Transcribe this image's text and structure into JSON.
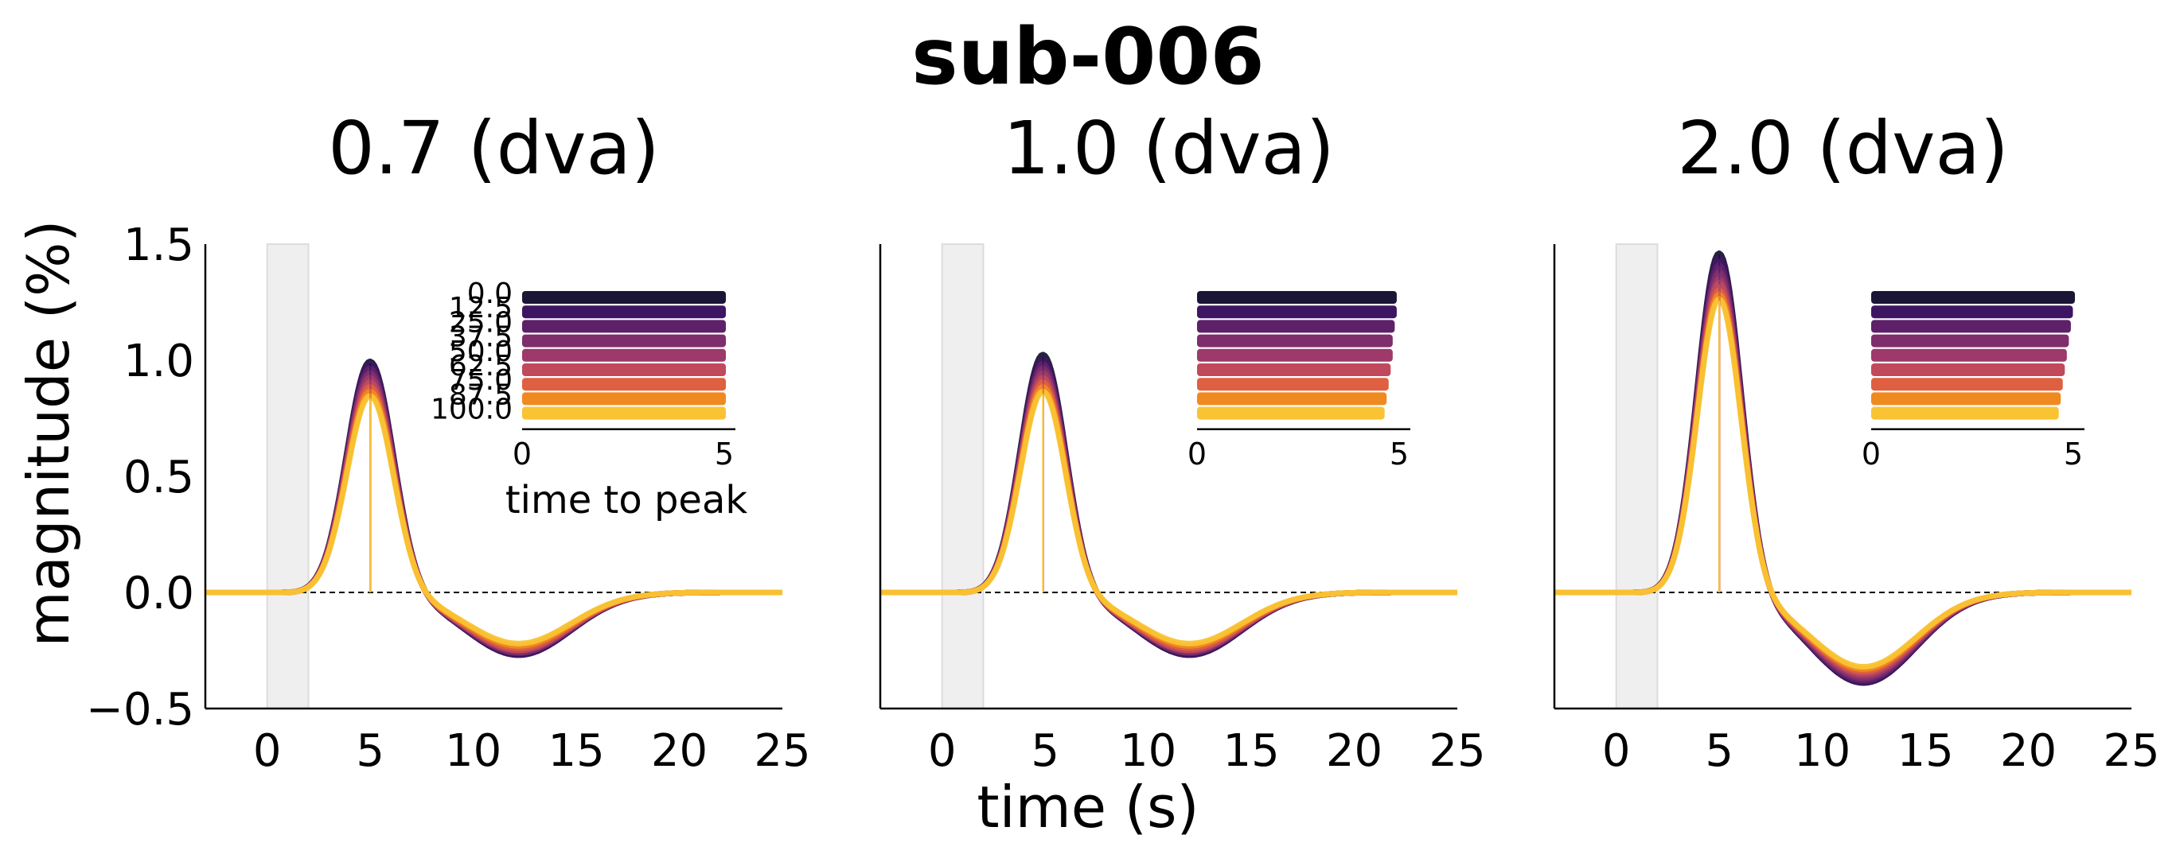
{
  "figure": {
    "suptitle": "sub-006",
    "xlabel": "time (s)",
    "ylabel": "magnitude (%)"
  },
  "chart_data": [
    {
      "type": "line",
      "title": "0.7 (dva)",
      "xlim": [
        -3,
        25
      ],
      "ylim": [
        -0.5,
        1.5
      ],
      "xticks": [
        "0",
        "5",
        "10",
        "15",
        "20",
        "25"
      ],
      "yticks": [
        "−0.5",
        "0.0",
        "0.5",
        "1.0",
        "1.5"
      ],
      "stimulus_window": [
        0,
        2
      ],
      "reference_line_y": 0,
      "legend_categories": [
        "0.0",
        "12.5",
        "25.0",
        "37.5",
        "50.0",
        "62.5",
        "75.0",
        "87.5",
        "100.0"
      ],
      "colors": [
        "#1b1536",
        "#3e1562",
        "#5e2169",
        "#7d2e6b",
        "#9d3a6a",
        "#c04a5b",
        "#df6040",
        "#ef8a20",
        "#f9c333"
      ],
      "series": [
        {
          "peak": 1.0,
          "ttp": 5.0,
          "undershoot": -0.27,
          "under_t": 12.2,
          "width": 1.6
        },
        {
          "peak": 0.99,
          "ttp": 5.0,
          "undershoot": -0.27,
          "under_t": 12.2,
          "width": 1.6
        },
        {
          "peak": 0.97,
          "ttp": 5.0,
          "undershoot": -0.26,
          "under_t": 12.2,
          "width": 1.6
        },
        {
          "peak": 0.95,
          "ttp": 5.0,
          "undershoot": -0.26,
          "under_t": 12.2,
          "width": 1.6
        },
        {
          "peak": 0.93,
          "ttp": 5.0,
          "undershoot": -0.25,
          "under_t": 12.2,
          "width": 1.6
        },
        {
          "peak": 0.91,
          "ttp": 5.0,
          "undershoot": -0.25,
          "under_t": 12.2,
          "width": 1.6
        },
        {
          "peak": 0.89,
          "ttp": 5.0,
          "undershoot": -0.24,
          "under_t": 12.2,
          "width": 1.6
        },
        {
          "peak": 0.87,
          "ttp": 5.0,
          "undershoot": -0.23,
          "under_t": 12.2,
          "width": 1.6
        },
        {
          "peak": 0.85,
          "ttp": 5.0,
          "undershoot": -0.22,
          "under_t": 12.2,
          "width": 1.6
        }
      ],
      "inset": {
        "type": "bar",
        "orientation": "horizontal",
        "xlabel": "time to peak",
        "xlim": [
          0,
          5
        ],
        "xticks": [
          "0",
          "5"
        ],
        "show_category_labels": true,
        "values": [
          5.0,
          5.0,
          5.0,
          5.0,
          5.0,
          5.0,
          5.0,
          5.0,
          5.0
        ]
      }
    },
    {
      "type": "line",
      "title": "1.0 (dva)",
      "xlim": [
        -3,
        25
      ],
      "ylim": [
        -0.5,
        1.5
      ],
      "xticks": [
        "0",
        "5",
        "10",
        "15",
        "20",
        "25"
      ],
      "stimulus_window": [
        0,
        2
      ],
      "reference_line_y": 0,
      "colors": [
        "#1b1536",
        "#3e1562",
        "#5e2169",
        "#7d2e6b",
        "#9d3a6a",
        "#c04a5b",
        "#df6040",
        "#ef8a20",
        "#f9c333"
      ],
      "series": [
        {
          "peak": 1.03,
          "ttp": 4.9,
          "undershoot": -0.27,
          "under_t": 12.0,
          "width": 1.55
        },
        {
          "peak": 1.01,
          "ttp": 4.9,
          "undershoot": -0.27,
          "under_t": 12.0,
          "width": 1.55
        },
        {
          "peak": 0.99,
          "ttp": 4.9,
          "undershoot": -0.26,
          "under_t": 12.0,
          "width": 1.55
        },
        {
          "peak": 0.97,
          "ttp": 4.9,
          "undershoot": -0.26,
          "under_t": 12.0,
          "width": 1.55
        },
        {
          "peak": 0.95,
          "ttp": 4.9,
          "undershoot": -0.25,
          "under_t": 12.0,
          "width": 1.55
        },
        {
          "peak": 0.93,
          "ttp": 4.9,
          "undershoot": -0.25,
          "under_t": 12.0,
          "width": 1.55
        },
        {
          "peak": 0.91,
          "ttp": 4.9,
          "undershoot": -0.24,
          "under_t": 12.0,
          "width": 1.55
        },
        {
          "peak": 0.89,
          "ttp": 4.9,
          "undershoot": -0.23,
          "under_t": 12.0,
          "width": 1.55
        },
        {
          "peak": 0.87,
          "ttp": 4.9,
          "undershoot": -0.22,
          "under_t": 12.0,
          "width": 1.55
        }
      ],
      "inset": {
        "type": "bar",
        "orientation": "horizontal",
        "xlim": [
          0,
          5
        ],
        "xticks": [
          "0",
          "5"
        ],
        "show_category_labels": false,
        "values": [
          4.9,
          4.9,
          4.85,
          4.8,
          4.8,
          4.75,
          4.7,
          4.65,
          4.6
        ]
      }
    },
    {
      "type": "line",
      "title": "2.0 (dva)",
      "xlim": [
        -3,
        25
      ],
      "ylim": [
        -0.5,
        1.5
      ],
      "xticks": [
        "0",
        "5",
        "10",
        "15",
        "20",
        "25"
      ],
      "stimulus_window": [
        0,
        2
      ],
      "reference_line_y": 0,
      "colors": [
        "#1b1536",
        "#3e1562",
        "#5e2169",
        "#7d2e6b",
        "#9d3a6a",
        "#c04a5b",
        "#df6040",
        "#ef8a20",
        "#f9c333"
      ],
      "series": [
        {
          "peak": 1.47,
          "ttp": 5.0,
          "undershoot": -0.39,
          "under_t": 12.0,
          "width": 1.5
        },
        {
          "peak": 1.45,
          "ttp": 5.0,
          "undershoot": -0.39,
          "under_t": 12.0,
          "width": 1.5
        },
        {
          "peak": 1.42,
          "ttp": 5.0,
          "undershoot": -0.38,
          "under_t": 12.0,
          "width": 1.5
        },
        {
          "peak": 1.39,
          "ttp": 5.0,
          "undershoot": -0.37,
          "under_t": 12.0,
          "width": 1.5
        },
        {
          "peak": 1.36,
          "ttp": 5.0,
          "undershoot": -0.36,
          "under_t": 12.0,
          "width": 1.5
        },
        {
          "peak": 1.34,
          "ttp": 5.0,
          "undershoot": -0.35,
          "under_t": 12.0,
          "width": 1.5
        },
        {
          "peak": 1.31,
          "ttp": 5.0,
          "undershoot": -0.34,
          "under_t": 12.0,
          "width": 1.5
        },
        {
          "peak": 1.29,
          "ttp": 5.0,
          "undershoot": -0.33,
          "under_t": 12.0,
          "width": 1.5
        },
        {
          "peak": 1.27,
          "ttp": 5.0,
          "undershoot": -0.32,
          "under_t": 12.0,
          "width": 1.5
        }
      ],
      "inset": {
        "type": "bar",
        "orientation": "horizontal",
        "xlim": [
          0,
          5
        ],
        "xticks": [
          "0",
          "5"
        ],
        "show_category_labels": false,
        "values": [
          5.0,
          4.95,
          4.9,
          4.85,
          4.8,
          4.75,
          4.7,
          4.65,
          4.6
        ]
      }
    }
  ]
}
